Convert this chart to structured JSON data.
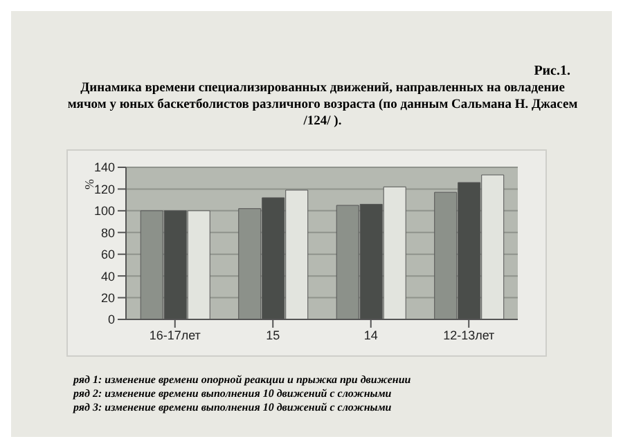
{
  "chart_data": {
    "type": "bar",
    "title": "Динамика времени специализированных движений, направленных на овладение мячом у юных баскетболистов различного возраста (по данным Сальмана Н. Джасем /124/ ).",
    "ylabel": "%",
    "categories": [
      "16-17лет",
      "15",
      "14",
      "12-13лет"
    ],
    "series": [
      {
        "color": "#8c918a",
        "values": [
          100,
          102,
          105,
          117
        ]
      },
      {
        "color": "#4a4d4a",
        "values": [
          100,
          112,
          106,
          126
        ]
      },
      {
        "color": "#e2e4de",
        "values": [
          100,
          119,
          122,
          133
        ]
      }
    ],
    "ylim": [
      0,
      140
    ],
    "yticks": [
      0,
      20,
      40,
      60,
      80,
      100,
      120,
      140
    ],
    "grid": "y",
    "legend": false,
    "annotations": [
      "Рис.1.",
      "ряд 1: изменение времени опорной реакции и прыжка при движении",
      "ряд 2: изменение времени выполнения 10 движений с сложными",
      "ряд 3: изменение времени выполнения 10 движений с сложными"
    ]
  }
}
